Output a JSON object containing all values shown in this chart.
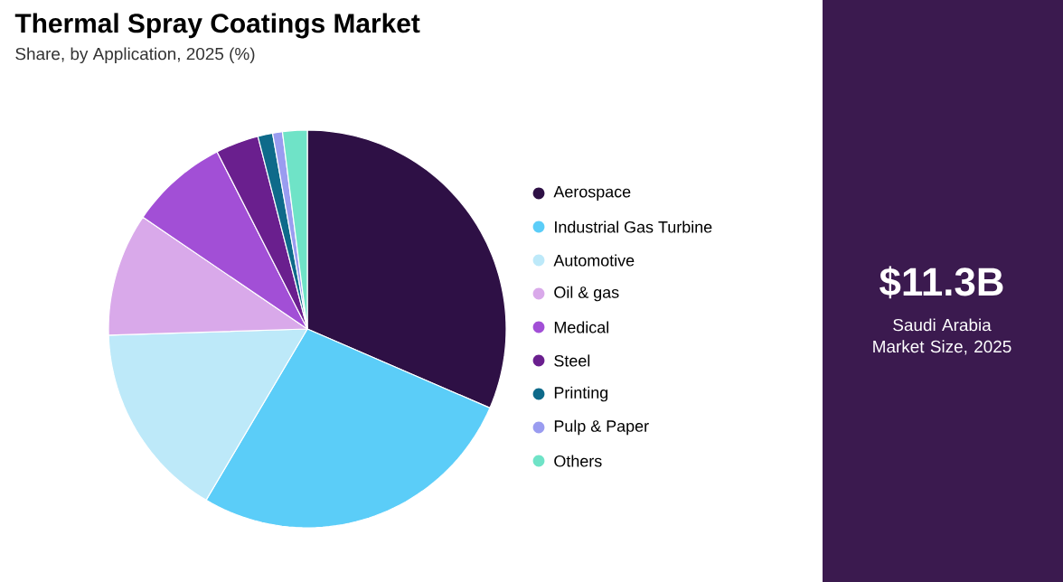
{
  "chart_data": {
    "type": "pie",
    "title": "Thermal Spray Coatings Market",
    "subtitle": "Share, by Application, 2025 (%)",
    "categories": [
      "Aerospace",
      "Industrial Gas Turbine",
      "Automotive",
      "Oil & gas",
      "Medical",
      "Steel",
      "Printing",
      "Pulp & Paper",
      "Others"
    ],
    "values": [
      31.5,
      27,
      16,
      10,
      8,
      3.5,
      1.2,
      0.8,
      2
    ],
    "colors": [
      "#2e1045",
      "#5bcdf8",
      "#bde9f9",
      "#d9a9ea",
      "#a24fd6",
      "#6a1f8e",
      "#0e6a8a",
      "#9a9cf0",
      "#6fe3c7"
    ],
    "legend": "right",
    "annotations": [
      "$11.3B",
      "Saudi Arabia Market Size, 2025"
    ]
  }
}
